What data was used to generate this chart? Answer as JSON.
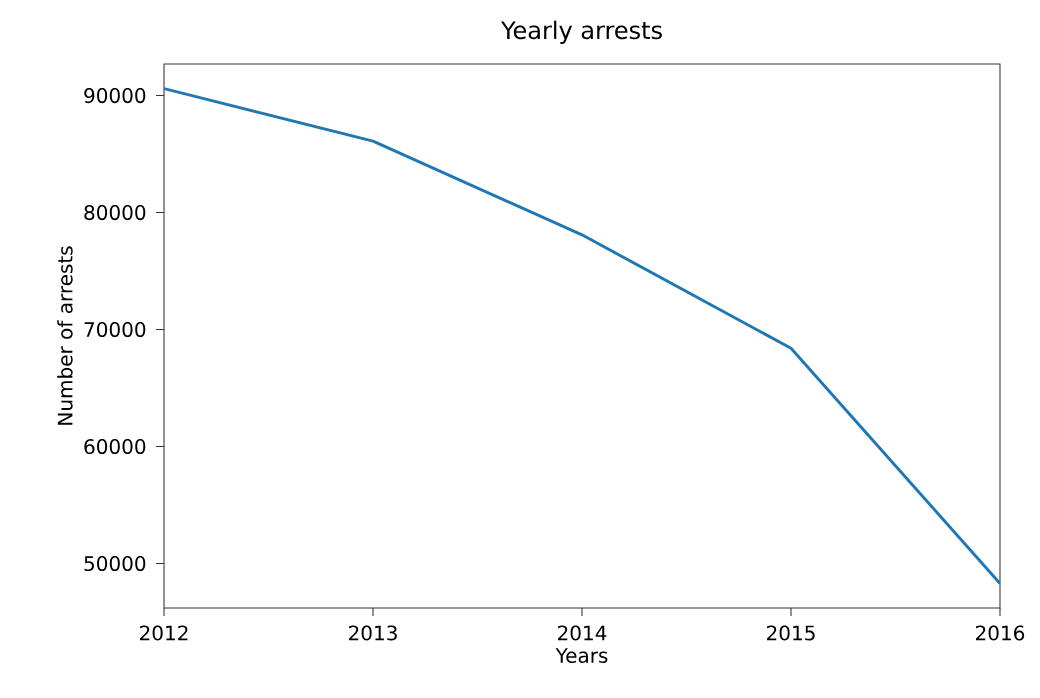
{
  "chart_data": {
    "type": "line",
    "title": "Yearly arrests",
    "xlabel": "Years",
    "ylabel": "Number of arrests",
    "x": [
      2012,
      2013,
      2014,
      2015,
      2016
    ],
    "series": [
      {
        "color": "#1f77b4",
        "values": [
          90600,
          86100,
          78100,
          68400,
          48300
        ]
      }
    ],
    "xlim": [
      2012,
      2016
    ],
    "xticks": [
      2012,
      2013,
      2014,
      2015,
      2016
    ],
    "ylim": [
      46200,
      92700
    ],
    "yticks": [
      50000,
      60000,
      70000,
      80000,
      90000
    ],
    "grid": false,
    "marker": "none",
    "line_style": "solid"
  }
}
